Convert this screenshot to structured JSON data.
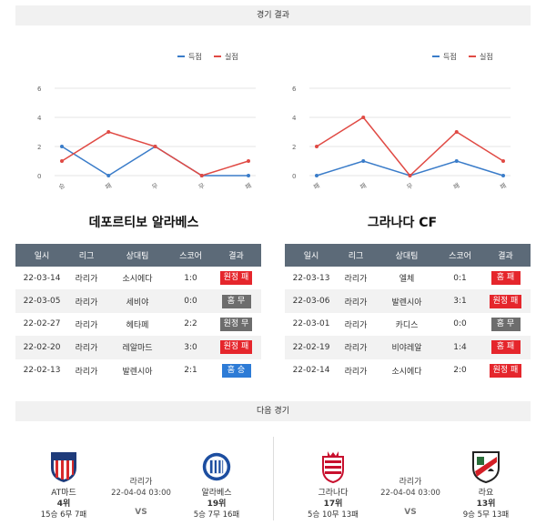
{
  "sections": {
    "results_title": "경기 결과",
    "next_title": "다음 경기"
  },
  "colors": {
    "scored": "#3a7cc9",
    "conceded": "#e04a44",
    "away_loss": "#e5262c",
    "home_loss": "#e5262c",
    "draw": "#6d6d6d",
    "win": "#2d7bd6",
    "header": "#5c6a78"
  },
  "chart_data": [
    {
      "type": "line",
      "legend": [
        "득점",
        "실점"
      ],
      "legend_position": "top-right",
      "categories": [
        "승",
        "패",
        "무",
        "무",
        "패"
      ],
      "series": [
        {
          "name": "득점",
          "values": [
            2,
            0,
            2,
            0,
            0
          ]
        },
        {
          "name": "실점",
          "values": [
            1,
            3,
            2,
            0,
            1
          ]
        }
      ],
      "yticks": [
        0,
        2,
        4,
        6
      ],
      "ylim": [
        0,
        6
      ],
      "grid": true
    },
    {
      "type": "line",
      "legend": [
        "득점",
        "실점"
      ],
      "legend_position": "top-right",
      "categories": [
        "패",
        "패",
        "무",
        "패",
        "패"
      ],
      "series": [
        {
          "name": "득점",
          "values": [
            0,
            1,
            0,
            1,
            0
          ]
        },
        {
          "name": "실점",
          "values": [
            2,
            4,
            0,
            3,
            1
          ]
        }
      ],
      "yticks": [
        0,
        2,
        4,
        6
      ],
      "ylim": [
        0,
        6
      ],
      "grid": true
    }
  ],
  "teams": {
    "left_title": "데포르티보 알라베스",
    "right_title": "그라나다 CF"
  },
  "table_headers": [
    "일시",
    "리그",
    "상대팀",
    "스코어",
    "결과"
  ],
  "left_results": [
    {
      "date": "22-03-14",
      "league": "라리가",
      "opponent": "소시에다",
      "score": "1:0",
      "result": "원정 패",
      "type": "away_loss"
    },
    {
      "date": "22-03-05",
      "league": "라리가",
      "opponent": "세비야",
      "score": "0:0",
      "result": "홈 무",
      "type": "draw"
    },
    {
      "date": "22-02-27",
      "league": "라리가",
      "opponent": "헤타페",
      "score": "2:2",
      "result": "원정 무",
      "type": "draw"
    },
    {
      "date": "22-02-20",
      "league": "라리가",
      "opponent": "레알마드",
      "score": "3:0",
      "result": "원정 패",
      "type": "away_loss"
    },
    {
      "date": "22-02-13",
      "league": "라리가",
      "opponent": "발렌시아",
      "score": "2:1",
      "result": "홈 승",
      "type": "win"
    }
  ],
  "right_results": [
    {
      "date": "22-03-13",
      "league": "라리가",
      "opponent": "엘체",
      "score": "0:1",
      "result": "홈 패",
      "type": "home_loss"
    },
    {
      "date": "22-03-06",
      "league": "라리가",
      "opponent": "발렌시아",
      "score": "3:1",
      "result": "원정 패",
      "type": "away_loss"
    },
    {
      "date": "22-03-01",
      "league": "라리가",
      "opponent": "카디스",
      "score": "0:0",
      "result": "홈 무",
      "type": "draw"
    },
    {
      "date": "22-02-19",
      "league": "라리가",
      "opponent": "비야레알",
      "score": "1:4",
      "result": "홈 패",
      "type": "home_loss"
    },
    {
      "date": "22-02-14",
      "league": "라리가",
      "opponent": "소시에다",
      "score": "2:0",
      "result": "원정 패",
      "type": "away_loss"
    }
  ],
  "next_matches": [
    {
      "league": "라리가",
      "datetime": "22-04-04 03:00",
      "vs": "VS",
      "home": {
        "name": "AT마드",
        "rank": "4위",
        "record": "15승 6무 7패",
        "logo": "atletico-madrid-crest"
      },
      "away": {
        "name": "알라베스",
        "rank": "19위",
        "record": "5승 7무 16패",
        "logo": "alaves-crest"
      }
    },
    {
      "league": "라리가",
      "datetime": "22-04-04 03:00",
      "vs": "VS",
      "home": {
        "name": "그라나다",
        "rank": "17위",
        "record": "5승 10무 13패",
        "logo": "granada-crest"
      },
      "away": {
        "name": "라요",
        "rank": "13위",
        "record": "9승 5무 13패",
        "logo": "rayo-vallecano-crest"
      }
    }
  ]
}
